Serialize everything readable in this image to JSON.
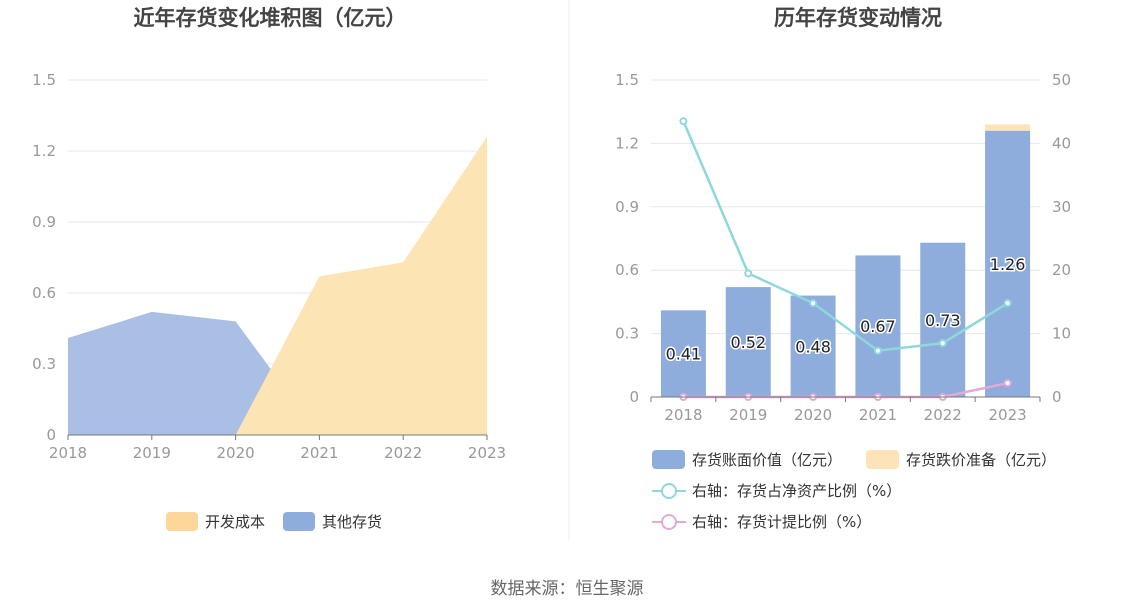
{
  "colors": {
    "dev_cost": "#fde4b4",
    "dev_cost_legend": "#fdd79a",
    "other_inventory": "#a9bfe3",
    "other_inventory_legend": "#8eaddc",
    "book_value": "#8eaddc",
    "impairment": "#fde3b8",
    "net_asset_ratio_line": "#8ed8dc",
    "provision_ratio_line": "#e5a9d8",
    "grid": "#e3e7f2",
    "axis_text": "#999999",
    "title_text": "#444444"
  },
  "chart_data": [
    {
      "type": "area",
      "title": "近年存货变化堆积图（亿元）",
      "categories": [
        "2018",
        "2019",
        "2020",
        "2021",
        "2022",
        "2023"
      ],
      "yticks": [
        "0",
        "0.3",
        "0.6",
        "0.9",
        "1.2",
        "1.5"
      ],
      "ylim": [
        0,
        1.5
      ],
      "grid": true,
      "legend_position": "bottom",
      "series": [
        {
          "name": "其他存货",
          "values": [
            0.41,
            0.52,
            0.48,
            0,
            0,
            0
          ]
        },
        {
          "name": "开发成本",
          "values": [
            0,
            0,
            0,
            0.67,
            0.73,
            1.26
          ]
        }
      ],
      "legend": [
        "开发成本",
        "其他存货"
      ]
    },
    {
      "type": "bar",
      "title": "历年存货变动情况",
      "categories": [
        "2018",
        "2019",
        "2020",
        "2021",
        "2022",
        "2023"
      ],
      "yticks_left": [
        "0",
        "0.3",
        "0.6",
        "0.9",
        "1.2",
        "1.5"
      ],
      "ylim_left": [
        0,
        1.5
      ],
      "yticks_right": [
        "0",
        "10",
        "20",
        "30",
        "40",
        "50"
      ],
      "ylim_right": [
        0,
        50
      ],
      "grid": true,
      "legend_position": "bottom",
      "bar_series": [
        {
          "name": "存货账面价值（亿元）",
          "values": [
            0.41,
            0.52,
            0.48,
            0.67,
            0.73,
            1.26
          ],
          "labels": [
            "0.41",
            "0.52",
            "0.48",
            "0.67",
            "0.73",
            "1.26"
          ]
        },
        {
          "name": "存货跌价准备（亿元）",
          "values": [
            0,
            0,
            0,
            0,
            0,
            0.03
          ]
        }
      ],
      "line_series": [
        {
          "name": "右轴：存货占净资产比例（%）",
          "values": [
            43.5,
            19.5,
            14.8,
            7.3,
            8.5,
            14.8
          ]
        },
        {
          "name": "右轴：存货计提比例（%）",
          "values": [
            0,
            0,
            0,
            0,
            0,
            2.2
          ]
        }
      ]
    }
  ],
  "source": "数据来源：恒生聚源"
}
